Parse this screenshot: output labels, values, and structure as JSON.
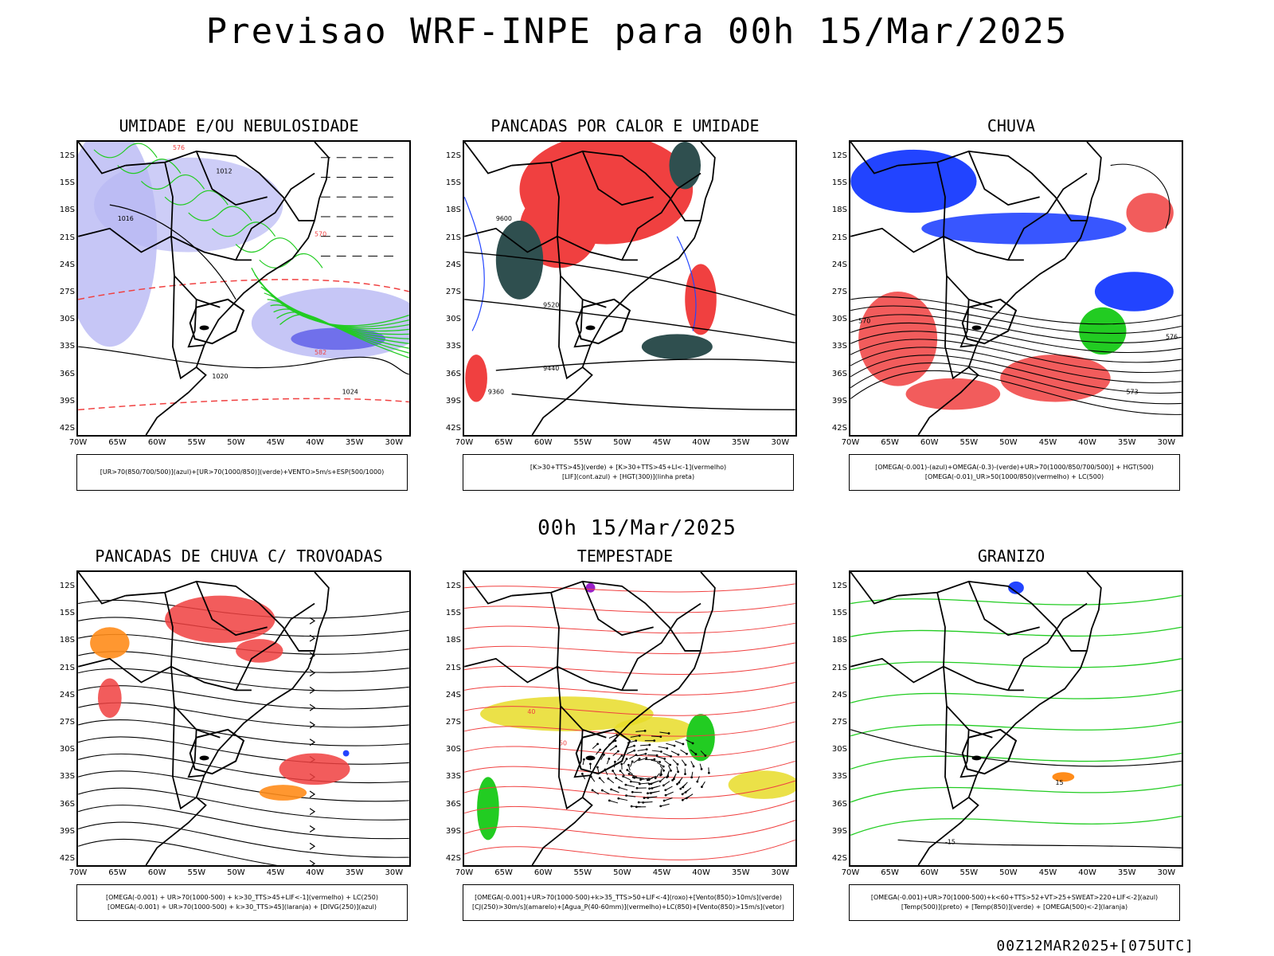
{
  "title": "Previsao WRF-INPE  para 00h 15/Mar/2025",
  "middle_title": "00h 15/Mar/2025",
  "footer": "00Z12MAR2025+[075UTC]",
  "lat_labels": [
    "12S",
    "15S",
    "18S",
    "21S",
    "24S",
    "27S",
    "30S",
    "33S",
    "36S",
    "39S",
    "42S"
  ],
  "lon_labels": [
    "70W",
    "65W",
    "60W",
    "55W",
    "50W",
    "45W",
    "40W",
    "35W",
    "30W"
  ],
  "panels": [
    {
      "title": "UMIDADE E/OU NEBULOSIDADE",
      "legend": [
        "[UR>70(850/700/500)](azul)+[UR>70(1000/850)](verde)+VENTO>5m/s+ESP(500/1000)"
      ],
      "contour_labels": [
        "1012",
        "1016",
        "1020",
        "1024",
        "570",
        "576",
        "582"
      ]
    },
    {
      "title": "PANCADAS POR CALOR E UMIDADE",
      "legend": [
        "[K>30+TTS>45](verde) + [K>30+TTS>45+LI<-1](vermelho)",
        "[LIF](cont.azul) + [HGT(300)](linha preta)"
      ],
      "contour_labels": [
        "9600",
        "9520",
        "9440",
        "9360"
      ]
    },
    {
      "title": "CHUVA",
      "legend": [
        "[OMEGA(-0.001)-(azul)+OMEGA(-0.3)-(verde)+UR>70(1000/850/700/500)] + HGT(500)",
        "[OMEGA(-0.01)_UR>50(1000/850)(vermelho) + LC(500)"
      ],
      "contour_labels": [
        "570",
        "573",
        "576"
      ]
    },
    {
      "title": "PANCADAS DE CHUVA C/ TROVOADAS",
      "legend": [
        "[OMEGA(-0.001) + UR>70(1000-500) + k>30_TTS>45+LIF<-1](vermelho) + LC(250)",
        "[OMEGA(-0.001) + UR>70(1000-500) + k>30_TTS>45](laranja) + [DIVG(250)](azul)"
      ],
      "contour_labels": []
    },
    {
      "title": "TEMPESTADE",
      "legend": [
        "[OMEGA(-0.001)+UR>70(1000-500)+k>35_TTS>50+LIF<-4](roxo)+[Vento(850)>10m/s](verde)",
        "[CJ(250)>30m/s](amarelo)+[Agua_P(40-60mm)](vermelho)+LC(850)+[Vento(850)>15m/s](vetor)"
      ],
      "contour_labels": [
        "40",
        "50"
      ]
    },
    {
      "title": "GRANIZO",
      "legend": [
        "[OMEGA(-0.001)+UR>70(1000-500)+k<60+TTS>52+VT>25+SWEAT>220+LIF<-2](azul)",
        "[Temp(500)](preto) + [Temp(850)](verde) + [OMEGA(500)<-2](laranja)"
      ],
      "contour_labels": [
        "-15",
        "15"
      ]
    }
  ],
  "colors": {
    "humidity_blue": "#b8b8f4",
    "humidity_blue_dark": "#5a5ae8",
    "green": "#22cc22",
    "red": "#f04040",
    "dark_teal": "#2f4f4f",
    "blue": "#2244ff",
    "orange": "#ff8c1a",
    "yellow": "#e8dc28",
    "purple": "#9a20c8",
    "black": "#000000"
  }
}
